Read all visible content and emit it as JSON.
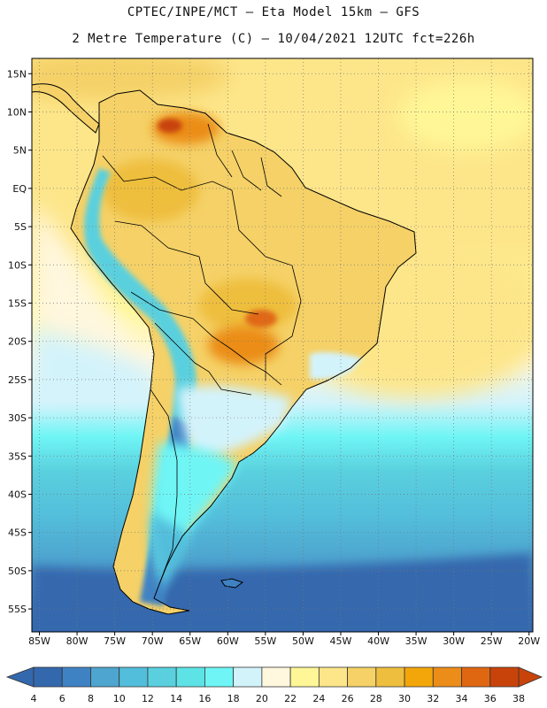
{
  "header": {
    "line1": "CPTEC/INPE/MCT –  Eta Model 15km – GFS",
    "line2": "2 Metre Temperature (C) – 10/04/2021 12UTC fct=226h"
  },
  "map": {
    "lon_range": [
      -86,
      -19.5
    ],
    "lat_range": [
      -58,
      17
    ],
    "lat_ticks": [
      {
        "value": 15,
        "label": "15N"
      },
      {
        "value": 10,
        "label": "10N"
      },
      {
        "value": 5,
        "label": "5N"
      },
      {
        "value": 0,
        "label": "EQ"
      },
      {
        "value": -5,
        "label": "5S"
      },
      {
        "value": -10,
        "label": "10S"
      },
      {
        "value": -15,
        "label": "15S"
      },
      {
        "value": -20,
        "label": "20S"
      },
      {
        "value": -25,
        "label": "25S"
      },
      {
        "value": -30,
        "label": "30S"
      },
      {
        "value": -35,
        "label": "35S"
      },
      {
        "value": -40,
        "label": "40S"
      },
      {
        "value": -45,
        "label": "45S"
      },
      {
        "value": -50,
        "label": "50S"
      },
      {
        "value": -55,
        "label": "55S"
      }
    ],
    "lon_ticks": [
      {
        "value": -85,
        "label": "85W"
      },
      {
        "value": -80,
        "label": "80W"
      },
      {
        "value": -75,
        "label": "75W"
      },
      {
        "value": -70,
        "label": "70W"
      },
      {
        "value": -65,
        "label": "65W"
      },
      {
        "value": -60,
        "label": "60W"
      },
      {
        "value": -55,
        "label": "55W"
      },
      {
        "value": -50,
        "label": "50W"
      },
      {
        "value": -45,
        "label": "45W"
      },
      {
        "value": -40,
        "label": "40W"
      },
      {
        "value": -35,
        "label": "35W"
      },
      {
        "value": -30,
        "label": "30W"
      },
      {
        "value": -25,
        "label": "25W"
      },
      {
        "value": -20,
        "label": "20W"
      }
    ]
  },
  "colorbar": {
    "labels": [
      "4",
      "6",
      "8",
      "10",
      "12",
      "14",
      "16",
      "18",
      "20",
      "22",
      "24",
      "26",
      "28",
      "30",
      "32",
      "34",
      "36",
      "38"
    ],
    "colors": [
      "#3468ad",
      "#3f82c4",
      "#4ea5cf",
      "#53bedb",
      "#5ad0de",
      "#5de3e6",
      "#6ff5f5",
      "#d3f3fb",
      "#fff7de",
      "#fff797",
      "#fde68a",
      "#f5d167",
      "#eebe3e",
      "#f3a60a",
      "#eb8d18",
      "#e06712",
      "#c8430a"
    ],
    "low_color": "#3468ad",
    "high_color": "#c8430a"
  }
}
